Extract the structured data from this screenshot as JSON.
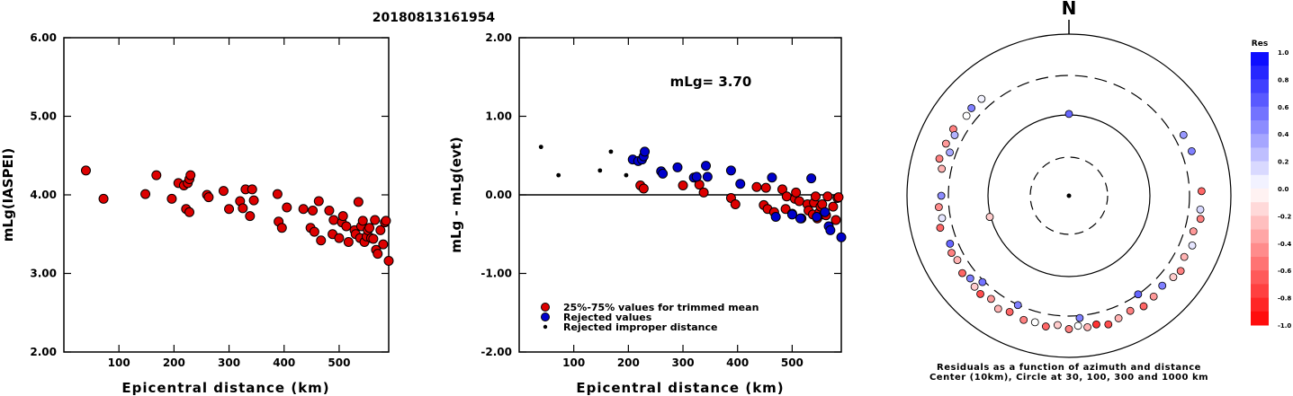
{
  "figure_title": "20180813161954",
  "chart_data": [
    {
      "type": "scatter",
      "panel": "magnitude",
      "xlabel": "Epicentral distance (km)",
      "ylabel": "mLg(IASPEI)",
      "xlim": [
        0,
        590
      ],
      "ylim": [
        2.0,
        6.0
      ],
      "x_ticks": [
        "100",
        "200",
        "300",
        "400",
        "500"
      ],
      "x_tick_values": [
        100,
        200,
        300,
        400,
        500
      ],
      "y_ticks": [
        "2.00",
        "3.00",
        "4.00",
        "5.00",
        "6.00"
      ],
      "y_tick_values": [
        2,
        3,
        4,
        5,
        6
      ],
      "series": [
        {
          "color": "#dd0000",
          "points": [
            [
              40,
              4.31
            ],
            [
              72,
              3.95
            ],
            [
              148,
              4.01
            ],
            [
              168,
              4.25
            ],
            [
              196,
              3.95
            ],
            [
              208,
              4.15
            ],
            [
              218,
              4.12
            ],
            [
              222,
              3.82
            ],
            [
              225,
              4.15
            ],
            [
              228,
              4.2
            ],
            [
              230,
              4.25
            ],
            [
              228,
              3.78
            ],
            [
              260,
              4.0
            ],
            [
              263,
              3.97
            ],
            [
              290,
              4.05
            ],
            [
              300,
              3.82
            ],
            [
              320,
              3.92
            ],
            [
              325,
              3.83
            ],
            [
              330,
              4.07
            ],
            [
              338,
              3.73
            ],
            [
              342,
              4.07
            ],
            [
              345,
              3.93
            ],
            [
              388,
              4.01
            ],
            [
              390,
              3.66
            ],
            [
              396,
              3.58
            ],
            [
              405,
              3.84
            ],
            [
              435,
              3.82
            ],
            [
              448,
              3.58
            ],
            [
              452,
              3.8
            ],
            [
              455,
              3.53
            ],
            [
              463,
              3.92
            ],
            [
              467,
              3.42
            ],
            [
              482,
              3.8
            ],
            [
              488,
              3.5
            ],
            [
              490,
              3.68
            ],
            [
              500,
              3.45
            ],
            [
              505,
              3.65
            ],
            [
              507,
              3.73
            ],
            [
              513,
              3.6
            ],
            [
              517,
              3.4
            ],
            [
              528,
              3.55
            ],
            [
              530,
              3.5
            ],
            [
              535,
              3.91
            ],
            [
              538,
              3.45
            ],
            [
              540,
              3.6
            ],
            [
              543,
              3.67
            ],
            [
              546,
              3.4
            ],
            [
              550,
              3.47
            ],
            [
              552,
              3.55
            ],
            [
              555,
              3.58
            ],
            [
              558,
              3.45
            ],
            [
              562,
              3.44
            ],
            [
              565,
              3.68
            ],
            [
              567,
              3.3
            ],
            [
              570,
              3.25
            ],
            [
              575,
              3.55
            ],
            [
              580,
              3.37
            ],
            [
              583,
              3.65
            ],
            [
              585,
              3.67
            ],
            [
              590,
              3.16
            ]
          ]
        }
      ]
    },
    {
      "type": "scatter",
      "panel": "residual",
      "annotation": "mLg= 3.70",
      "xlabel": "Epicentral distance (km)",
      "ylabel": "mLg - mLg(evt)",
      "xlim": [
        0,
        590
      ],
      "ylim": [
        -2.0,
        2.0
      ],
      "x_ticks": [
        "100",
        "200",
        "300",
        "400",
        "500"
      ],
      "x_tick_values": [
        100,
        200,
        300,
        400,
        500
      ],
      "y_ticks": [
        "-2.00",
        "-1.00",
        "0.00",
        "1.00",
        "2.00"
      ],
      "y_tick_values": [
        -2,
        -1,
        0,
        1,
        2
      ],
      "legend": [
        {
          "label": "25%-75% values for trimmed mean",
          "color": "#dd0000",
          "marker": "circle"
        },
        {
          "label": "Rejected values",
          "color": "#0000cc",
          "marker": "circle"
        },
        {
          "label": "Rejected improper distance",
          "color": "#000000",
          "marker": "dot"
        }
      ],
      "series": [
        {
          "name": "25%-75% values for trimmed mean",
          "color": "#dd0000",
          "points": [
            [
              222,
              0.12
            ],
            [
              228,
              0.08
            ],
            [
              300,
              0.12
            ],
            [
              330,
              0.13
            ],
            [
              338,
              0.03
            ],
            [
              388,
              -0.04
            ],
            [
              396,
              -0.12
            ],
            [
              435,
              0.1
            ],
            [
              448,
              -0.13
            ],
            [
              452,
              0.09
            ],
            [
              455,
              -0.18
            ],
            [
              467,
              -0.22
            ],
            [
              482,
              0.07
            ],
            [
              488,
              -0.18
            ],
            [
              490,
              -0.02
            ],
            [
              500,
              -0.24
            ],
            [
              505,
              -0.05
            ],
            [
              507,
              0.03
            ],
            [
              513,
              -0.08
            ],
            [
              517,
              -0.3
            ],
            [
              528,
              -0.12
            ],
            [
              530,
              -0.2
            ],
            [
              538,
              -0.25
            ],
            [
              540,
              -0.1
            ],
            [
              543,
              -0.02
            ],
            [
              546,
              -0.3
            ],
            [
              550,
              -0.22
            ],
            [
              552,
              -0.15
            ],
            [
              555,
              -0.12
            ],
            [
              558,
              -0.25
            ],
            [
              562,
              -0.26
            ],
            [
              565,
              -0.02
            ],
            [
              575,
              -0.15
            ],
            [
              580,
              -0.32
            ],
            [
              583,
              -0.04
            ],
            [
              585,
              -0.03
            ]
          ]
        },
        {
          "name": "Rejected values",
          "color": "#0000cc",
          "points": [
            [
              208,
              0.45
            ],
            [
              218,
              0.43
            ],
            [
              225,
              0.45
            ],
            [
              228,
              0.49
            ],
            [
              230,
              0.55
            ],
            [
              260,
              0.3
            ],
            [
              263,
              0.27
            ],
            [
              290,
              0.35
            ],
            [
              320,
              0.22
            ],
            [
              325,
              0.23
            ],
            [
              342,
              0.37
            ],
            [
              345,
              0.23
            ],
            [
              388,
              0.31
            ],
            [
              405,
              0.14
            ],
            [
              463,
              0.22
            ],
            [
              470,
              -0.28
            ],
            [
              500,
              -0.25
            ],
            [
              515,
              -0.3
            ],
            [
              535,
              0.21
            ],
            [
              545,
              -0.28
            ],
            [
              560,
              -0.22
            ],
            [
              567,
              -0.4
            ],
            [
              570,
              -0.45
            ],
            [
              590,
              -0.54
            ]
          ]
        },
        {
          "name": "Rejected improper distance",
          "color": "#000000",
          "points": [
            [
              40,
              0.61
            ],
            [
              72,
              0.25
            ],
            [
              148,
              0.31
            ],
            [
              168,
              0.55
            ],
            [
              196,
              0.25
            ]
          ]
        }
      ]
    },
    {
      "type": "polar-scatter",
      "north_label": "N",
      "caption_line1": "Residuals as a function of azimuth and distance",
      "caption_line2": "Center (10km), Circle at 30, 100, 300 and 1000 km",
      "colorbar": {
        "title": "Res",
        "range": [
          -1.0,
          1.0
        ],
        "tick_labels": [
          "1.0",
          "0.8",
          "0.6",
          "0.4",
          "0.2",
          "0.0",
          "-0.2",
          "-0.4",
          "-0.6",
          "-0.8",
          "-1.0"
        ],
        "positive_color": "#0000ff",
        "negative_color": "#ff0000",
        "zero_color": "#ffffff"
      },
      "rings_km": [
        30,
        100,
        300,
        1000
      ],
      "ring_styles": [
        "dashed",
        "solid",
        "dashed",
        "solid"
      ],
      "stations": [
        {
          "az": 0,
          "dist": 105,
          "res": 0.6
        },
        {
          "az": 255,
          "dist": 105,
          "res": -0.2
        },
        {
          "az": 318,
          "dist": 470,
          "res": 0.05
        },
        {
          "az": 312,
          "dist": 480,
          "res": 0.5
        },
        {
          "az": 308,
          "dist": 460,
          "res": 0.0
        },
        {
          "az": 300,
          "dist": 520,
          "res": -0.5
        },
        {
          "az": 298,
          "dist": 450,
          "res": 0.3
        },
        {
          "az": 293,
          "dist": 520,
          "res": -0.4
        },
        {
          "az": 290,
          "dist": 405,
          "res": 0.35
        },
        {
          "az": 286,
          "dist": 540,
          "res": -0.5
        },
        {
          "az": 282,
          "dist": 460,
          "res": -0.3
        },
        {
          "az": 270,
          "dist": 420,
          "res": 0.45
        },
        {
          "az": 265,
          "dist": 470,
          "res": -0.45
        },
        {
          "az": 260,
          "dist": 440,
          "res": 0.1
        },
        {
          "az": 256,
          "dist": 505,
          "res": -0.6
        },
        {
          "az": 248,
          "dist": 430,
          "res": 0.6
        },
        {
          "az": 244,
          "dist": 470,
          "res": -0.5
        },
        {
          "az": 240,
          "dist": 440,
          "res": -0.3
        },
        {
          "az": 234,
          "dist": 490,
          "res": -0.6
        },
        {
          "az": 230,
          "dist": 440,
          "res": 0.5
        },
        {
          "az": 226,
          "dist": 480,
          "res": -0.2
        },
        {
          "az": 222,
          "dist": 500,
          "res": -0.7
        },
        {
          "az": 217,
          "dist": 450,
          "res": -0.4
        },
        {
          "az": 212,
          "dist": 520,
          "res": -0.3
        },
        {
          "az": 207,
          "dist": 470,
          "res": -0.6
        },
        {
          "az": 200,
          "dist": 500,
          "res": -0.5
        },
        {
          "az": 195,
          "dist": 480,
          "res": 0.0
        },
        {
          "az": 190,
          "dist": 510,
          "res": -0.6
        },
        {
          "az": 185,
          "dist": 460,
          "res": -0.2
        },
        {
          "az": 180,
          "dist": 520,
          "res": -0.5
        },
        {
          "az": 176,
          "dist": 470,
          "res": 0.0
        },
        {
          "az": 172,
          "dist": 510,
          "res": -0.3
        },
        {
          "az": 168,
          "dist": 490,
          "res": -0.8
        },
        {
          "az": 163,
          "dist": 540,
          "res": -0.7
        },
        {
          "az": 158,
          "dist": 500,
          "res": -0.3
        },
        {
          "az": 152,
          "dist": 470,
          "res": -0.5
        },
        {
          "az": 146,
          "dist": 520,
          "res": -0.6
        },
        {
          "az": 140,
          "dist": 490,
          "res": -0.4
        },
        {
          "az": 134,
          "dist": 455,
          "res": 0.5
        },
        {
          "az": 128,
          "dist": 500,
          "res": -0.2
        },
        {
          "az": 124,
          "dist": 540,
          "res": -0.5
        },
        {
          "az": 118,
          "dist": 470,
          "res": -0.3
        },
        {
          "az": 112,
          "dist": 510,
          "res": 0.1
        },
        {
          "az": 106,
          "dist": 450,
          "res": -0.4
        },
        {
          "az": 100,
          "dist": 520,
          "res": -0.5
        },
        {
          "az": 96,
          "dist": 495,
          "res": 0.15
        },
        {
          "az": 88,
          "dist": 505,
          "res": -0.6
        },
        {
          "az": 70,
          "dist": 470,
          "res": 0.5
        },
        {
          "az": 62,
          "dist": 455,
          "res": 0.4
        },
        {
          "az": 145,
          "dist": 300,
          "res": 0.6
        },
        {
          "az": 205,
          "dist": 305,
          "res": 0.5
        },
        {
          "az": 225,
          "dist": 330,
          "res": 0.55
        },
        {
          "az": 175,
          "dist": 340,
          "res": 0.5
        }
      ]
    }
  ]
}
